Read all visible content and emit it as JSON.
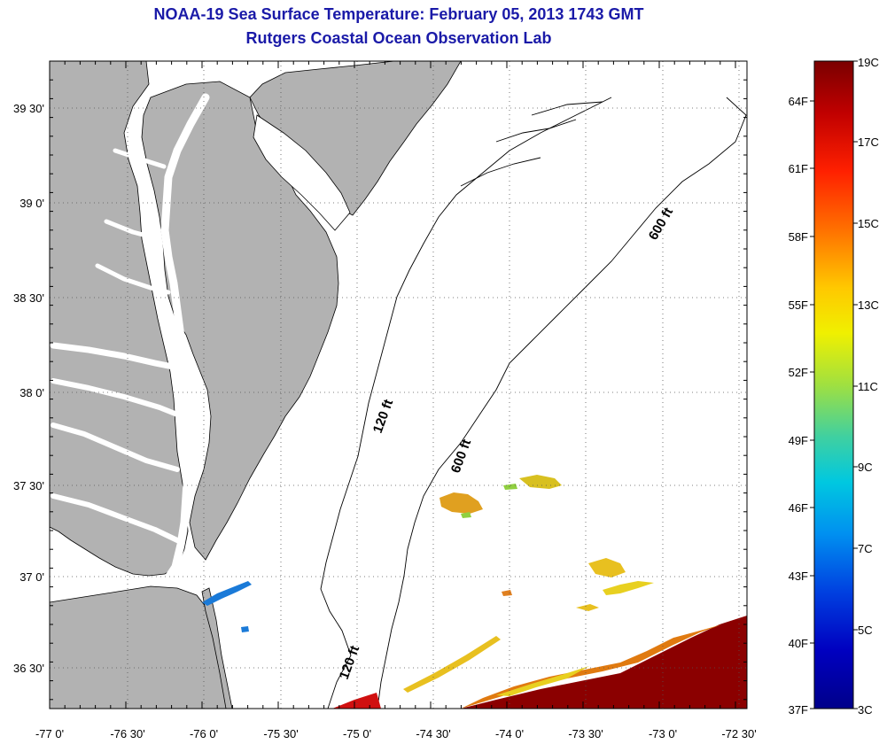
{
  "title": "NOAA-19 Sea Surface Temperature:  February 05, 2013 1743 GMT",
  "subtitle": "Rutgers Coastal Ocean Observation Lab",
  "map": {
    "lon_ticks": [
      "-77 0'",
      "-76 30'",
      "-76 0'",
      "-75 30'",
      "-75 0'",
      "-74 30'",
      "-74 0'",
      "-73 30'",
      "-73 0'",
      "-72 30'"
    ],
    "lat_ticks": [
      "39 30'",
      "39 0'",
      "38 30'",
      "38 0'",
      "37 30'",
      "37 0'",
      "36 30'"
    ],
    "land_color": "#b2b2b2",
    "ocean_color": "#ffffff",
    "contour_labels": [
      "120 ft",
      "600 ft",
      "600 ft",
      "120 ft"
    ]
  },
  "colorbar": {
    "celsius": [
      "19C",
      "17C",
      "15C",
      "13C",
      "11C",
      "9C",
      "7C",
      "5C",
      "3C"
    ],
    "fahrenheit": [
      "64F",
      "61F",
      "58F",
      "55F",
      "52F",
      "49F",
      "46F",
      "43F",
      "40F",
      "37F"
    ],
    "colors": [
      "#7a0000",
      "#c00000",
      "#ff2000",
      "#ff7000",
      "#ffc800",
      "#f0f000",
      "#a0e040",
      "#40d0a0",
      "#00c8e0",
      "#0090f0",
      "#0040e0",
      "#0000c0",
      "#00008a"
    ]
  },
  "sst_colors": {
    "dark_red": "#8b0000",
    "red": "#d01010",
    "orange": "#e07a10",
    "yellow": "#e8d020",
    "green": "#90d040",
    "blue": "#1a7ad8"
  }
}
